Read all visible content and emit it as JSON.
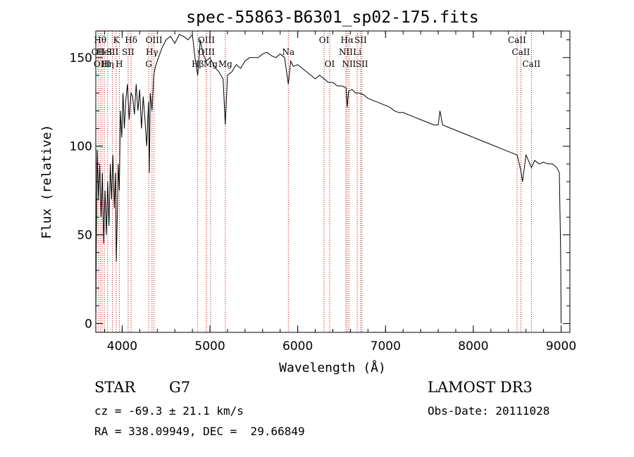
{
  "chart_data": {
    "type": "line",
    "title": "spec-55863-B6301_sp02-175.fits",
    "xlabel": "Wavelength (Å)",
    "ylabel": "Flux (relative)",
    "xlim": [
      3700,
      9100
    ],
    "ylim": [
      -5,
      165
    ],
    "xticks": [
      4000,
      5000,
      6000,
      7000,
      8000,
      9000
    ],
    "yticks": [
      0,
      50,
      100,
      150
    ],
    "grid": false,
    "series": [
      {
        "name": "flux",
        "x": [
          3700,
          3705,
          3715,
          3730,
          3745,
          3760,
          3775,
          3790,
          3805,
          3820,
          3835,
          3850,
          3865,
          3880,
          3895,
          3910,
          3925,
          3933,
          3945,
          3955,
          3968,
          3980,
          3995,
          4010,
          4025,
          4040,
          4060,
          4080,
          4100,
          4120,
          4140,
          4160,
          4180,
          4200,
          4220,
          4240,
          4260,
          4280,
          4300,
          4310,
          4320,
          4340,
          4360,
          4380,
          4400,
          4450,
          4500,
          4550,
          4600,
          4650,
          4700,
          4750,
          4800,
          4830,
          4861,
          4890,
          4920,
          4960,
          5000,
          5050,
          5100,
          5150,
          5175,
          5200,
          5250,
          5300,
          5350,
          5400,
          5450,
          5500,
          5550,
          5600,
          5650,
          5700,
          5750,
          5800,
          5850,
          5893,
          5920,
          5950,
          6000,
          6050,
          6100,
          6150,
          6200,
          6250,
          6300,
          6350,
          6400,
          6450,
          6500,
          6550,
          6563,
          6580,
          6620,
          6660,
          6700,
          6750,
          6800,
          6850,
          6900,
          6950,
          7000,
          7050,
          7100,
          7150,
          7200,
          7250,
          7300,
          7350,
          7400,
          7450,
          7500,
          7550,
          7600,
          7620,
          7650,
          7700,
          7750,
          7800,
          7850,
          7900,
          7950,
          8000,
          8050,
          8100,
          8150,
          8200,
          8250,
          8300,
          8350,
          8400,
          8450,
          8500,
          8542,
          8560,
          8600,
          8662,
          8700,
          8750,
          8800,
          8850,
          8900,
          8950,
          8980,
          8995,
          9000
        ],
        "y": [
          0,
          40,
          98,
          70,
          90,
          60,
          85,
          45,
          75,
          50,
          80,
          55,
          90,
          70,
          95,
          65,
          85,
          35,
          60,
          90,
          75,
          120,
          105,
          130,
          110,
          125,
          135,
          115,
          130,
          128,
          118,
          135,
          120,
          132,
          110,
          128,
          115,
          100,
          125,
          85,
          130,
          120,
          140,
          145,
          148,
          155,
          160,
          162,
          158,
          163,
          162,
          160,
          163,
          150,
          140,
          160,
          152,
          148,
          150,
          145,
          142,
          138,
          112,
          140,
          142,
          146,
          144,
          148,
          150,
          150,
          150,
          152,
          153,
          151,
          150,
          152,
          150,
          135,
          148,
          145,
          146,
          144,
          142,
          140,
          138,
          140,
          138,
          136,
          136,
          134,
          134,
          133,
          122,
          131,
          132,
          130,
          130,
          129,
          127,
          126,
          125,
          124,
          123,
          122,
          120,
          119,
          119,
          118,
          117,
          116,
          115,
          114,
          113,
          112,
          112,
          120,
          112,
          111,
          110,
          109,
          108,
          107,
          106,
          105,
          104,
          103,
          102,
          101,
          100,
          99,
          98,
          97,
          96,
          95,
          86,
          80,
          95,
          88,
          92,
          90,
          91,
          90,
          90,
          88,
          85,
          40,
          0
        ]
      }
    ],
    "line_markers": [
      {
        "x": 3727,
        "label": "OII",
        "row": 2
      },
      {
        "x": 3750,
        "label": "Hθ",
        "row": 1
      },
      {
        "x": 3771,
        "label": "OIII",
        "row": 3
      },
      {
        "x": 3797,
        "label": "HeI",
        "row": 2
      },
      {
        "x": 3835,
        "label": "Hη",
        "row": 3
      },
      {
        "x": 3889,
        "label": "SII",
        "row": 2
      },
      {
        "x": 3933,
        "label": "K",
        "row": 1
      },
      {
        "x": 3968,
        "label": "H",
        "row": 3
      },
      {
        "x": 4102,
        "label": "Hδ",
        "row": 1
      },
      {
        "x": 4068,
        "label": "SII",
        "row": 2
      },
      {
        "x": 4303,
        "label": "G",
        "row": 3
      },
      {
        "x": 4340,
        "label": "Hγ",
        "row": 2
      },
      {
        "x": 4363,
        "label": "OIII",
        "row": 1
      },
      {
        "x": 4861,
        "label": "Hβ",
        "row": 3
      },
      {
        "x": 4959,
        "label": "OIII",
        "row": 1
      },
      {
        "x": 4959,
        "label": "OIII",
        "row": 2
      },
      {
        "x": 5007,
        "label": "Mg",
        "row": 3
      },
      {
        "x": 5175,
        "label": "Mg",
        "row": 3
      },
      {
        "x": 5893,
        "label": "Na",
        "row": 2
      },
      {
        "x": 6300,
        "label": "OI",
        "row": 1
      },
      {
        "x": 6364,
        "label": "OI",
        "row": 3
      },
      {
        "x": 6548,
        "label": "NII",
        "row": 2
      },
      {
        "x": 6563,
        "label": "Hα",
        "row": 1
      },
      {
        "x": 6584,
        "label": "NII",
        "row": 3
      },
      {
        "x": 6678,
        "label": "Li",
        "row": 2
      },
      {
        "x": 6716,
        "label": "SII",
        "row": 1
      },
      {
        "x": 6731,
        "label": "SII",
        "row": 3
      },
      {
        "x": 8498,
        "label": "CaII",
        "row": 1
      },
      {
        "x": 8542,
        "label": "CaII",
        "row": 2
      },
      {
        "x": 8662,
        "label": "CaII",
        "row": 3
      }
    ]
  },
  "info": {
    "class": "STAR",
    "subclass": "G7",
    "cz": "cz = -69.3 ± 21.1 km/s",
    "coords": "RA = 338.09949, DEC =  29.66849",
    "survey": "LAMOST DR3",
    "obs_date": "Obs-Date: 20111028"
  },
  "colors": {
    "line_marker": "#cc0000",
    "spectrum": "#000000"
  }
}
